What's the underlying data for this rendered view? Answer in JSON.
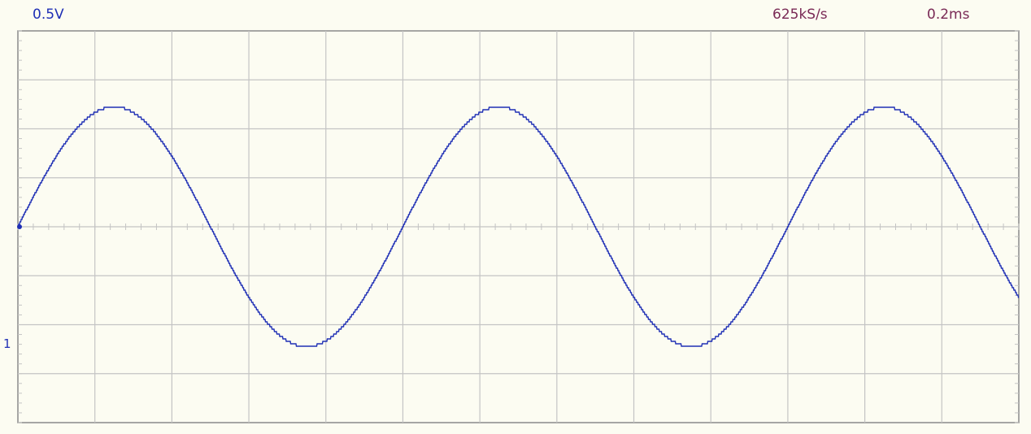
{
  "readouts": {
    "volts_per_div": "0.5V",
    "sample_rate": "625kS/s",
    "time_per_div": "0.2ms"
  },
  "channel": {
    "marker": "1",
    "color": "#1f2fb5"
  },
  "colors": {
    "background": "#fcfcf2",
    "grid": "#c4c4c4",
    "frame": "#8a8a8a",
    "rate_text": "#7a2a56",
    "volts_text": "#1f2fb5"
  },
  "chart_data": {
    "type": "line",
    "title": "",
    "xlabel": "",
    "ylabel": "",
    "grid": true,
    "x_divisions": 13,
    "y_divisions": 8,
    "xlim_div": [
      0,
      13
    ],
    "ylim_div": [
      -4,
      4
    ],
    "series": [
      {
        "waveform": "sine",
        "amplitude_div": 2.45,
        "offset_div": 0,
        "period_div": 5.0,
        "phase_start": "rising zero crossing at left edge",
        "staircase_quantized": true
      }
    ]
  }
}
